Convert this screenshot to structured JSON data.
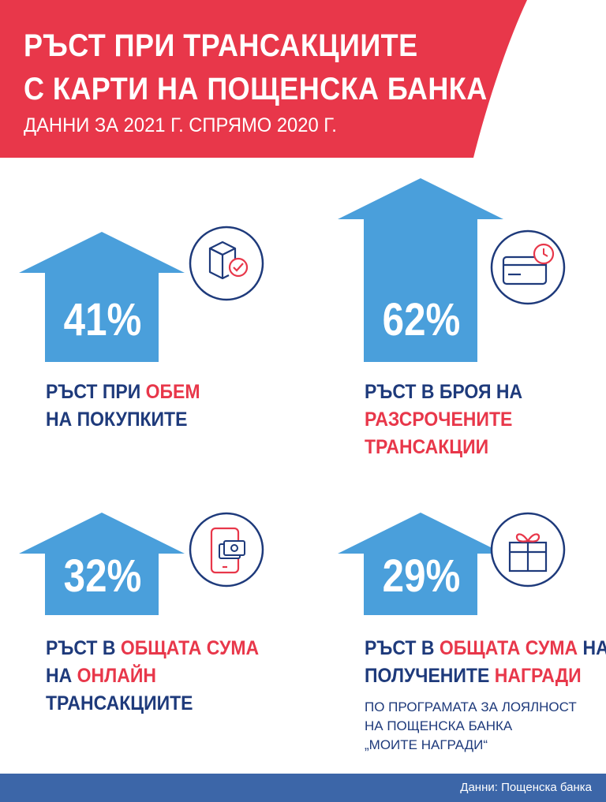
{
  "header": {
    "title_line1": "РЪСТ ПРИ ТРАНСАКЦИИТЕ",
    "title_line2": "С КАРТИ НА ПОЩЕНСКА БАНКА",
    "subtitle": "ДАННИ ЗА 2021 Г. СПРЯМО 2020 Г."
  },
  "colors": {
    "banner_red": "#e8374a",
    "arrow_blue": "#4a9fdb",
    "navy": "#1e3a7b",
    "highlight_red": "#e8374a",
    "footer_blue": "#3c66a8"
  },
  "stats": [
    {
      "value": "41%",
      "icon": "box-check-icon",
      "caption_line1": [
        "РЪСТ ПРИ ",
        "ОБЕМ"
      ],
      "caption_line2": [
        "НА ПОКУПКИТЕ"
      ]
    },
    {
      "value": "62%",
      "icon": "card-clock-icon",
      "caption_line1": [
        "РЪСТ В БРОЯ НА"
      ],
      "caption_line2": [
        "РАЗСРОЧЕНИТЕ"
      ],
      "caption_line3": [
        "ТРАНСАКЦИИ"
      ]
    },
    {
      "value": "32%",
      "icon": "phone-money-icon",
      "caption_line1": [
        "РЪСТ В ",
        "ОБЩАТА СУМА"
      ],
      "caption_line2": [
        "НА ",
        "ОНЛАЙН"
      ],
      "caption_line3": [
        "ТРАНСАКЦИИТЕ"
      ]
    },
    {
      "value": "29%",
      "icon": "gift-icon",
      "caption_line1": [
        "РЪСТ В ",
        "ОБЩАТА СУМА",
        " НА"
      ],
      "caption_line2": [
        "ПОЛУЧЕНИТЕ ",
        "НАГРАДИ"
      ],
      "note_line1": "ПО ПРОГРАМАТА ЗА ЛОЯЛНОСТ",
      "note_line2": "НА ПОЩЕНСКА БАНКА",
      "note_line3": "„МОИТЕ НАГРАДИ“"
    }
  ],
  "footer": {
    "source": "Данни: Пощенска банка"
  }
}
